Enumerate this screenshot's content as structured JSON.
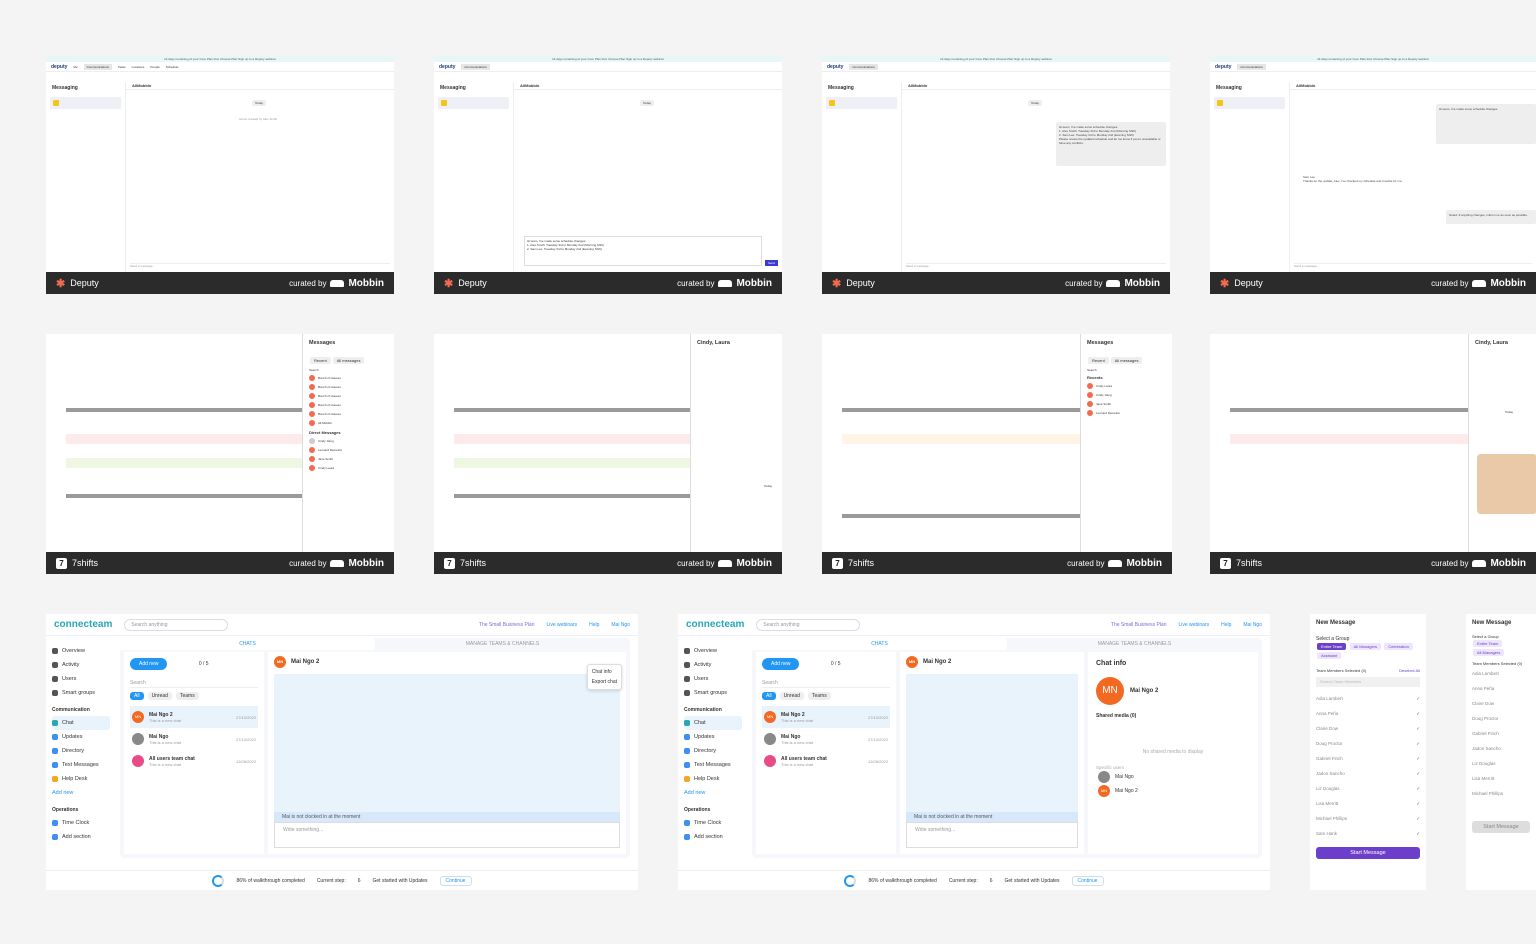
{
  "deputy": {
    "banner": "14 days remaining of your Core Plan trial.  Choose Plan   Sign up to a Deputy webinar",
    "logo": "deputy",
    "nav": [
      "Me",
      "Communications",
      "Tasks",
      "Locations",
      "People",
      "Schedule",
      "Timesheets",
      "Payroll",
      "Analytics"
    ],
    "integrations": "Integrations",
    "sidebar_title": "Messaging",
    "group_name": "AllMobbin",
    "group_sub": "Group created by Alex Smith",
    "date_pill": "Today",
    "system_note": "Group created by Alex Smith",
    "composer_placeholder": "Send a message...",
    "send_label": "Send",
    "message_text": "Hi team, I've made some schedule changes:",
    "message_lines": [
      "1. Alex Smith: Tuesday 3rd to Monday 2nd (Morning Shift)",
      "2. Sam Lee: Tuesday 3rd to Monday 2nd (Evening Shift)",
      "Please review the updated schedule and let me know if you're unavailable or have any conflicts."
    ],
    "reply_name": "Sam Lee",
    "reply_text": "Thanks for the update, Alex. I've checked my schedule and it works for me.",
    "reply_own": "Noted. If anything changes, inform me as soon as possible.",
    "footer_brand": "Deputy",
    "curated_by": "curated by",
    "curator": "Mobbin"
  },
  "sevenshifts": {
    "footer_brand": "7shifts",
    "messages_title": "Messages",
    "tabs": [
      "Recent",
      "All messages"
    ],
    "search": "Search",
    "locations": [
      "Bunch of Houses",
      "Bunch of Houses",
      "Bunch of Houses",
      "Bunch of Houses",
      "Bunch of Houses",
      "All Mobbin"
    ],
    "direct_messages": "Direct Messages",
    "dm_names": [
      "Cindy Jiang",
      "Leonard Demetrio",
      "Jane Smith",
      "Cindy Laura"
    ],
    "recents": "Recents",
    "recent_names": [
      "Cindy Laura",
      "Cindy Jiang",
      "Jane Smith",
      "Leonard Demetrio"
    ],
    "chat_title": "Cindy, Laura",
    "today": "Today"
  },
  "connecteam": {
    "logo": "connecteam",
    "search_placeholder": "Search anything",
    "plan_link": "The Small Business Plan",
    "webinars": "Live webinars",
    "help": "Help",
    "user": "Mai Ngo",
    "sidebar": {
      "overview": "Overview",
      "activity": "Activity",
      "users": "Users",
      "smart_groups": "Smart groups",
      "communication": "Communication",
      "chat": "Chat",
      "updates": "Updates",
      "directory": "Directory",
      "text_messages": "Text Messages",
      "help_desk": "Help Desk",
      "add_new": "Add new",
      "operations": "Operations",
      "time_clock": "Time Clock",
      "forms": "Forms",
      "add_section": "Add section"
    },
    "tabs": [
      "CHATS",
      "MANAGE TEAMS & CHANNELS"
    ],
    "add_new": "Add new",
    "counter": "0 / 5",
    "list_search": "Search",
    "filters": [
      "All",
      "Unread",
      "Teams"
    ],
    "chats": [
      {
        "initials": "MN",
        "name": "Mai Ngo 2",
        "sub": "This is a new chat",
        "date": "27/10/2022"
      },
      {
        "initials": "",
        "name": "Mai Ngo",
        "sub": "This is a new chat",
        "date": "27/10/2022"
      },
      {
        "initials": "",
        "name": "All users team chat",
        "sub": "This is a new chat",
        "date": "12/08/2022"
      }
    ],
    "conv_name": "Mai Ngo 2",
    "conv_initials": "MN",
    "menu": [
      "Chat info",
      "Export chat"
    ],
    "notice": "Mai is not clocked in at the moment",
    "write_placeholder": "Write something...",
    "walkthrough": "86% of walkthrough completed",
    "current_step": "Current step:",
    "step_num": "6",
    "step_name": "Get started with Updates",
    "continue": "Continue",
    "chat_info": {
      "title": "Chat info",
      "name": "Mai Ngo 2",
      "initials": "MN",
      "shared_media": "Shared media (0)",
      "no_media": "No shared media to display",
      "specific_users": "Specific users",
      "users": [
        "Mai Ngo",
        "Mai Ngo 2"
      ]
    }
  },
  "new_message": {
    "title": "New Message",
    "select_group": "Select a Group",
    "groups": [
      "Entire Team",
      "All Managers",
      "Celebration",
      "Assistant"
    ],
    "members_selected": "Team Members Selected (0)",
    "deselect_all": "Deselect All",
    "search": "Search Team Members",
    "members": [
      "Adia Lambert",
      "Anna Peña",
      "Claire Dow",
      "Doug Proctor",
      "Gabriel Finch",
      "Jadon Sancho",
      "Liz Douglas",
      "Lisa Merritt",
      "Michael Phillips",
      "Sam Hank"
    ],
    "start": "Start Message"
  },
  "colors": {
    "deputy_accent": "#f26a4f",
    "connecteam_blue": "#2196f3",
    "connecteam_teal": "#2aa6b7",
    "purple": "#6b3fc9",
    "footer_bg": "#2b2b2b"
  }
}
